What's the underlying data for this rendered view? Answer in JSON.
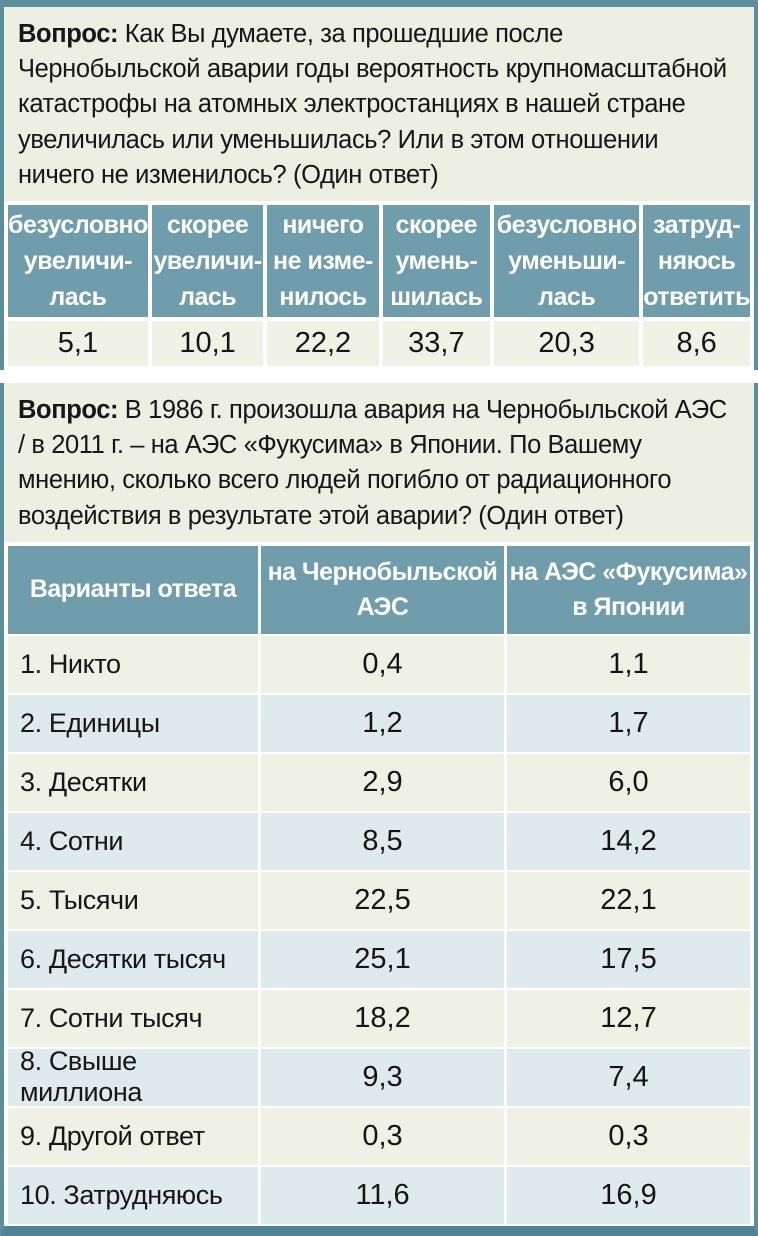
{
  "colors": {
    "border_teal": "#5d8e9c",
    "bottom_strip_teal": "#4f8496",
    "header_cell_teal": "#6f9dab",
    "block_background_cream": "#edefe2",
    "row_cream": "#eff1e4",
    "row_blue": "#dfeaec",
    "gap_white": "#ffffff"
  },
  "question1": {
    "label": "Вопрос:",
    "text": " Как Вы думаете, за прошедшие после Чернобыльской аварии годы вероятность крупномасштабной катастрофы на атомных электростанциях в нашей стране увеличилась или уменьшилась? Или в этом отношении ничего не изменилось? (Один ответ)"
  },
  "table1": {
    "headers": [
      "безусловно\nувеличи-\nлась",
      "скорее\nувеличи-\nлась",
      "ничего\nне изме-\nнилось",
      "скорее\nумень-\nшилась",
      "безусловно\nуменьши-\nлась",
      "затруд-\nняюсь\nответить"
    ],
    "values": [
      "5,1",
      "10,1",
      "22,2",
      "33,7",
      "20,3",
      "8,6"
    ]
  },
  "question2": {
    "label": "Вопрос:",
    "text": " В 1986 г. произошла авария на Чернобыльской АЭС / в 2011 г. – на АЭС «Фукусима» в Японии. По Вашему мнению, сколько всего людей погибло от радиационного воздействия в результате этой аварии? (Один ответ)"
  },
  "table2": {
    "col_headers": {
      "variants": "Варианты ответа",
      "chernobyl": "на Чернобыльской\nАЭС",
      "fukushima": "на АЭС «Фукусима»\nв Японии"
    },
    "rows": [
      {
        "label": "1. Никто",
        "chernobyl": "0,4",
        "fukushima": "1,1"
      },
      {
        "label": "2. Единицы",
        "chernobyl": "1,2",
        "fukushima": "1,7"
      },
      {
        "label": "3. Десятки",
        "chernobyl": "2,9",
        "fukushima": "6,0"
      },
      {
        "label": "4. Сотни",
        "chernobyl": "8,5",
        "fukushima": "14,2"
      },
      {
        "label": "5. Тысячи",
        "chernobyl": "22,5",
        "fukushima": "22,1"
      },
      {
        "label": "6. Десятки тысяч",
        "chernobyl": "25,1",
        "fukushima": "17,5"
      },
      {
        "label": "7. Сотни тысяч",
        "chernobyl": "18,2",
        "fukushima": "12,7"
      },
      {
        "label": "8. Свыше миллиона",
        "chernobyl": "9,3",
        "fukushima": "7,4"
      },
      {
        "label": "9. Другой ответ",
        "chernobyl": "0,3",
        "fukushima": "0,3"
      },
      {
        "label": "10. Затрудняюсь",
        "chernobyl": "11,6",
        "fukushima": "16,9"
      }
    ]
  }
}
